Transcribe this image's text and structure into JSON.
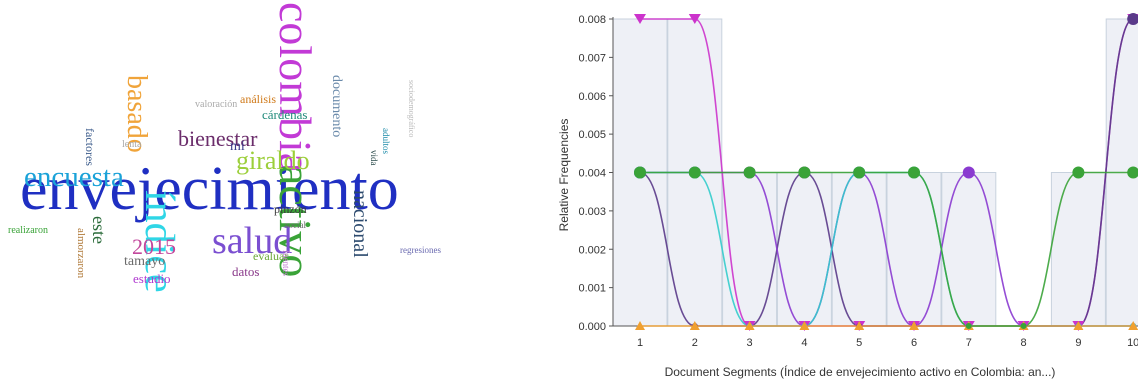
{
  "wordcloud": {
    "words": [
      {
        "text": "envejecimiento",
        "color": "#1f2fc2"
      },
      {
        "text": "colombia",
        "color": "#c23ad6"
      },
      {
        "text": "activo",
        "color": "#3aa338"
      },
      {
        "text": "índice",
        "color": "#2fd6e6"
      },
      {
        "text": "salud",
        "color": "#7b4fd1"
      },
      {
        "text": "encuesta",
        "color": "#1aa2d8"
      },
      {
        "text": "basado",
        "color": "#f0a43a"
      },
      {
        "text": "giraldo",
        "color": "#9ccf3a"
      },
      {
        "text": "bienestar",
        "color": "#6b2d6b"
      },
      {
        "text": "nacional",
        "color": "#2c4a6e"
      },
      {
        "text": "2015",
        "color": "#c2479c"
      },
      {
        "text": "este",
        "color": "#2a6b3a"
      },
      {
        "text": "tamayo",
        "color": "#6b6b6b"
      },
      {
        "text": "estudio",
        "color": "#b03ad0"
      },
      {
        "text": "datos",
        "color": "#8a3a8a"
      },
      {
        "text": "evaluar",
        "color": "#6aa838"
      },
      {
        "text": "pinzón",
        "color": "#3a3a3a"
      },
      {
        "text": "cárdenas",
        "color": "#1f8a7a"
      },
      {
        "text": "análisis",
        "color": "#d07a1a"
      },
      {
        "text": "mi",
        "color": "#3a3a8a"
      },
      {
        "text": "factores",
        "color": "#3a5a8a"
      },
      {
        "text": "documento",
        "color": "#6a8aaa"
      },
      {
        "text": "almorzaron",
        "color": "#b07a3a"
      },
      {
        "text": "realizaron",
        "color": "#3aa338"
      },
      {
        "text": "regresiones",
        "color": "#6a6ab0"
      },
      {
        "text": "social",
        "color": "#6a6a6a"
      },
      {
        "text": "vida",
        "color": "#2a4a4a"
      },
      {
        "text": "adultos",
        "color": "#1a8aa8"
      },
      {
        "text": "fuentes",
        "color": "#c07ad0"
      },
      {
        "text": "valoración",
        "color": "#aaaaaa"
      },
      {
        "text": "lenta",
        "color": "#a8a8a8"
      },
      {
        "text": "sociodemográfico",
        "color": "#bbbbbb"
      }
    ]
  },
  "chart_data": {
    "type": "line",
    "title": "",
    "xlabel": "Document Segments (Índice de envejecimiento activo en Colombia: an...)",
    "ylabel": "Relative Frequencies",
    "x": [
      1,
      2,
      3,
      4,
      5,
      6,
      7,
      8,
      9,
      10
    ],
    "xticks": [
      "1",
      "2",
      "3",
      "4",
      "5",
      "6",
      "7",
      "8",
      "9",
      "10"
    ],
    "ylim": [
      0,
      0.008
    ],
    "yticks": [
      "0.000",
      "0.001",
      "0.002",
      "0.003",
      "0.004",
      "0.005",
      "0.006",
      "0.007",
      "0.008"
    ],
    "grid": false,
    "series": [
      {
        "color": "#cc33cc",
        "marker": "triangle-down",
        "values": [
          0.008,
          0.008,
          0,
          0,
          0,
          0,
          0,
          0,
          0,
          0.008
        ]
      },
      {
        "color": "#5a3a8a",
        "marker": "circle",
        "values": [
          0.004,
          0,
          0,
          0.004,
          0,
          0,
          0,
          0,
          0,
          0.008
        ]
      },
      {
        "color": "#8a3ad0",
        "marker": "circle",
        "values": [
          0.004,
          0.004,
          0.004,
          0,
          0.004,
          0,
          0.004,
          0,
          0,
          0
        ]
      },
      {
        "color": "#33cccc",
        "marker": "circle",
        "values": [
          0.004,
          0.004,
          0,
          0,
          0.004,
          0.004,
          0,
          0,
          0,
          0
        ]
      },
      {
        "color": "#f0a030",
        "marker": "triangle-up",
        "values": [
          0,
          0,
          0,
          0,
          0,
          0,
          0,
          0,
          0,
          0
        ]
      },
      {
        "color": "#3aa338",
        "marker": "circle",
        "values": [
          0.004,
          0.004,
          0.004,
          0.004,
          0.004,
          0.004,
          0,
          0,
          0.004,
          0.004
        ]
      }
    ]
  }
}
